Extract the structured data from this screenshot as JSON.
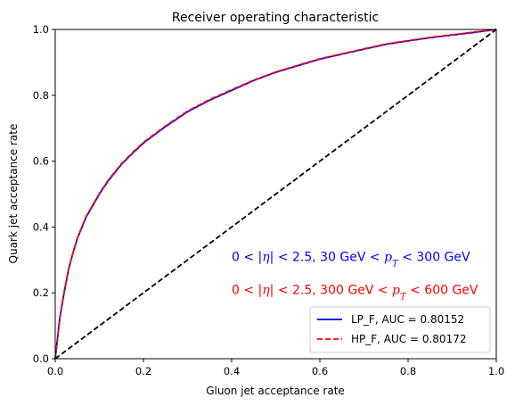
{
  "chart_data": {
    "type": "line",
    "title": "Receiver operating characteristic",
    "xlabel": "Gluon jet acceptance rate",
    "ylabel": "Quark jet acceptance rate",
    "xlim": [
      0,
      1
    ],
    "ylim": [
      0,
      1
    ],
    "grid": false,
    "legend_position": "bottom-right",
    "xticks": [
      "0.0",
      "0.2",
      "0.4",
      "0.6",
      "0.8",
      "1.0"
    ],
    "yticks": [
      "0.0",
      "0.2",
      "0.4",
      "0.6",
      "0.8",
      "1.0"
    ],
    "series": [
      {
        "name": "LP_F, AUC = 0.80152",
        "color": "#0000ff",
        "style": "solid",
        "x": [
          0,
          0.005,
          0.01,
          0.02,
          0.03,
          0.04,
          0.05,
          0.07,
          0.1,
          0.12,
          0.15,
          0.18,
          0.2,
          0.25,
          0.3,
          0.35,
          0.4,
          0.45,
          0.5,
          0.55,
          0.6,
          0.65,
          0.7,
          0.75,
          0.8,
          0.85,
          0.9,
          0.95,
          1.0
        ],
        "y": [
          0,
          0.06,
          0.12,
          0.2,
          0.27,
          0.32,
          0.365,
          0.43,
          0.5,
          0.54,
          0.59,
          0.63,
          0.655,
          0.705,
          0.75,
          0.785,
          0.815,
          0.845,
          0.87,
          0.89,
          0.91,
          0.925,
          0.94,
          0.955,
          0.965,
          0.975,
          0.983,
          0.991,
          1.0
        ]
      },
      {
        "name": "HP_F, AUC = 0.80172",
        "color": "#ff0000",
        "style": "dashed",
        "x": [
          0,
          0.005,
          0.01,
          0.02,
          0.03,
          0.04,
          0.05,
          0.07,
          0.1,
          0.12,
          0.15,
          0.18,
          0.2,
          0.25,
          0.3,
          0.35,
          0.4,
          0.45,
          0.5,
          0.55,
          0.6,
          0.65,
          0.7,
          0.75,
          0.8,
          0.85,
          0.9,
          0.95,
          1.0
        ],
        "y": [
          0,
          0.06,
          0.12,
          0.2,
          0.27,
          0.32,
          0.366,
          0.432,
          0.502,
          0.542,
          0.592,
          0.632,
          0.657,
          0.707,
          0.752,
          0.787,
          0.817,
          0.846,
          0.871,
          0.891,
          0.911,
          0.926,
          0.941,
          0.956,
          0.966,
          0.976,
          0.984,
          0.992,
          1.0
        ]
      },
      {
        "name": "",
        "color": "#000000",
        "style": "dashed",
        "x": [
          0,
          1
        ],
        "y": [
          0,
          1
        ]
      }
    ],
    "annotations": [
      {
        "color": "#0000ff",
        "x": 0.4,
        "y": 0.31,
        "parts": [
          "0 < |",
          "η",
          "| < 2.5,  30 GeV < ",
          "p",
          "T",
          " < 300 GeV"
        ]
      },
      {
        "color": "#ff0000",
        "x": 0.4,
        "y": 0.21,
        "parts": [
          "0 < |",
          "η",
          "| < 2.5,  300 GeV < ",
          "p",
          "T",
          " < 600 GeV"
        ]
      }
    ]
  }
}
